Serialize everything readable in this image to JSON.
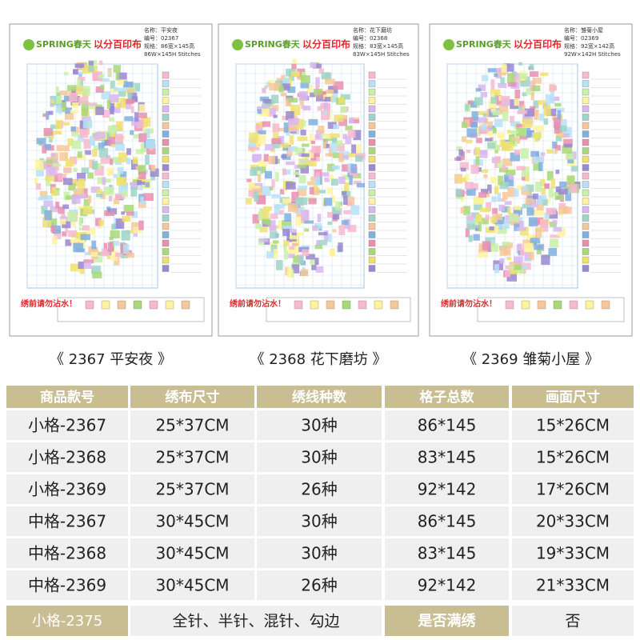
{
  "cards": [
    {
      "brand": "SPRING春天",
      "brand2": "以分百印布",
      "name": "名称：平安夜",
      "code": "编号：02367",
      "size": "规格：86宽×145高",
      "stitches": "86W×145H Stitches",
      "warning": "绣前请勿沾水！",
      "caption": "《 2367 平安夜 》"
    },
    {
      "brand": "SPRING春天",
      "brand2": "以分百印布",
      "name": "名称：花下磨坊",
      "code": "编号：02368",
      "size": "规格：83宽×145高",
      "stitches": "83W×145H Stitches",
      "warning": "绣前请勿沾水！",
      "caption": "《 2368 花下磨坊 》"
    },
    {
      "brand": "SPRING春天",
      "brand2": "以分百印布",
      "name": "名称：雏菊小屋",
      "code": "编号：02369",
      "size": "规格：92宽×142高",
      "stitches": "92W×142H Stitches",
      "warning": "绣前请勿沾水！",
      "caption": "《 2369 雏菊小屋 》"
    }
  ],
  "table": {
    "header": [
      "商品款号",
      "绣布尺寸",
      "绣线种数",
      "格子总数",
      "画面尺寸"
    ],
    "rows": [
      [
        "小格-2367",
        "25*37CM",
        "30种",
        "86*145",
        "15*26CM"
      ],
      [
        "小格-2368",
        "25*37CM",
        "30种",
        "83*145",
        "15*26CM"
      ],
      [
        "小格-2369",
        "25*37CM",
        "26种",
        "92*142",
        "17*26CM"
      ],
      [
        "中格-2367",
        "30*45CM",
        "30种",
        "86*145",
        "20*33CM"
      ],
      [
        "中格-2368",
        "30*45CM",
        "30种",
        "83*145",
        "19*33CM"
      ],
      [
        "中格-2369",
        "30*45CM",
        "26种",
        "92*142",
        "21*33CM"
      ]
    ],
    "footer": [
      "小格-2375",
      "全针、半针、混针、勾边",
      "是否满绣",
      "否"
    ]
  }
}
